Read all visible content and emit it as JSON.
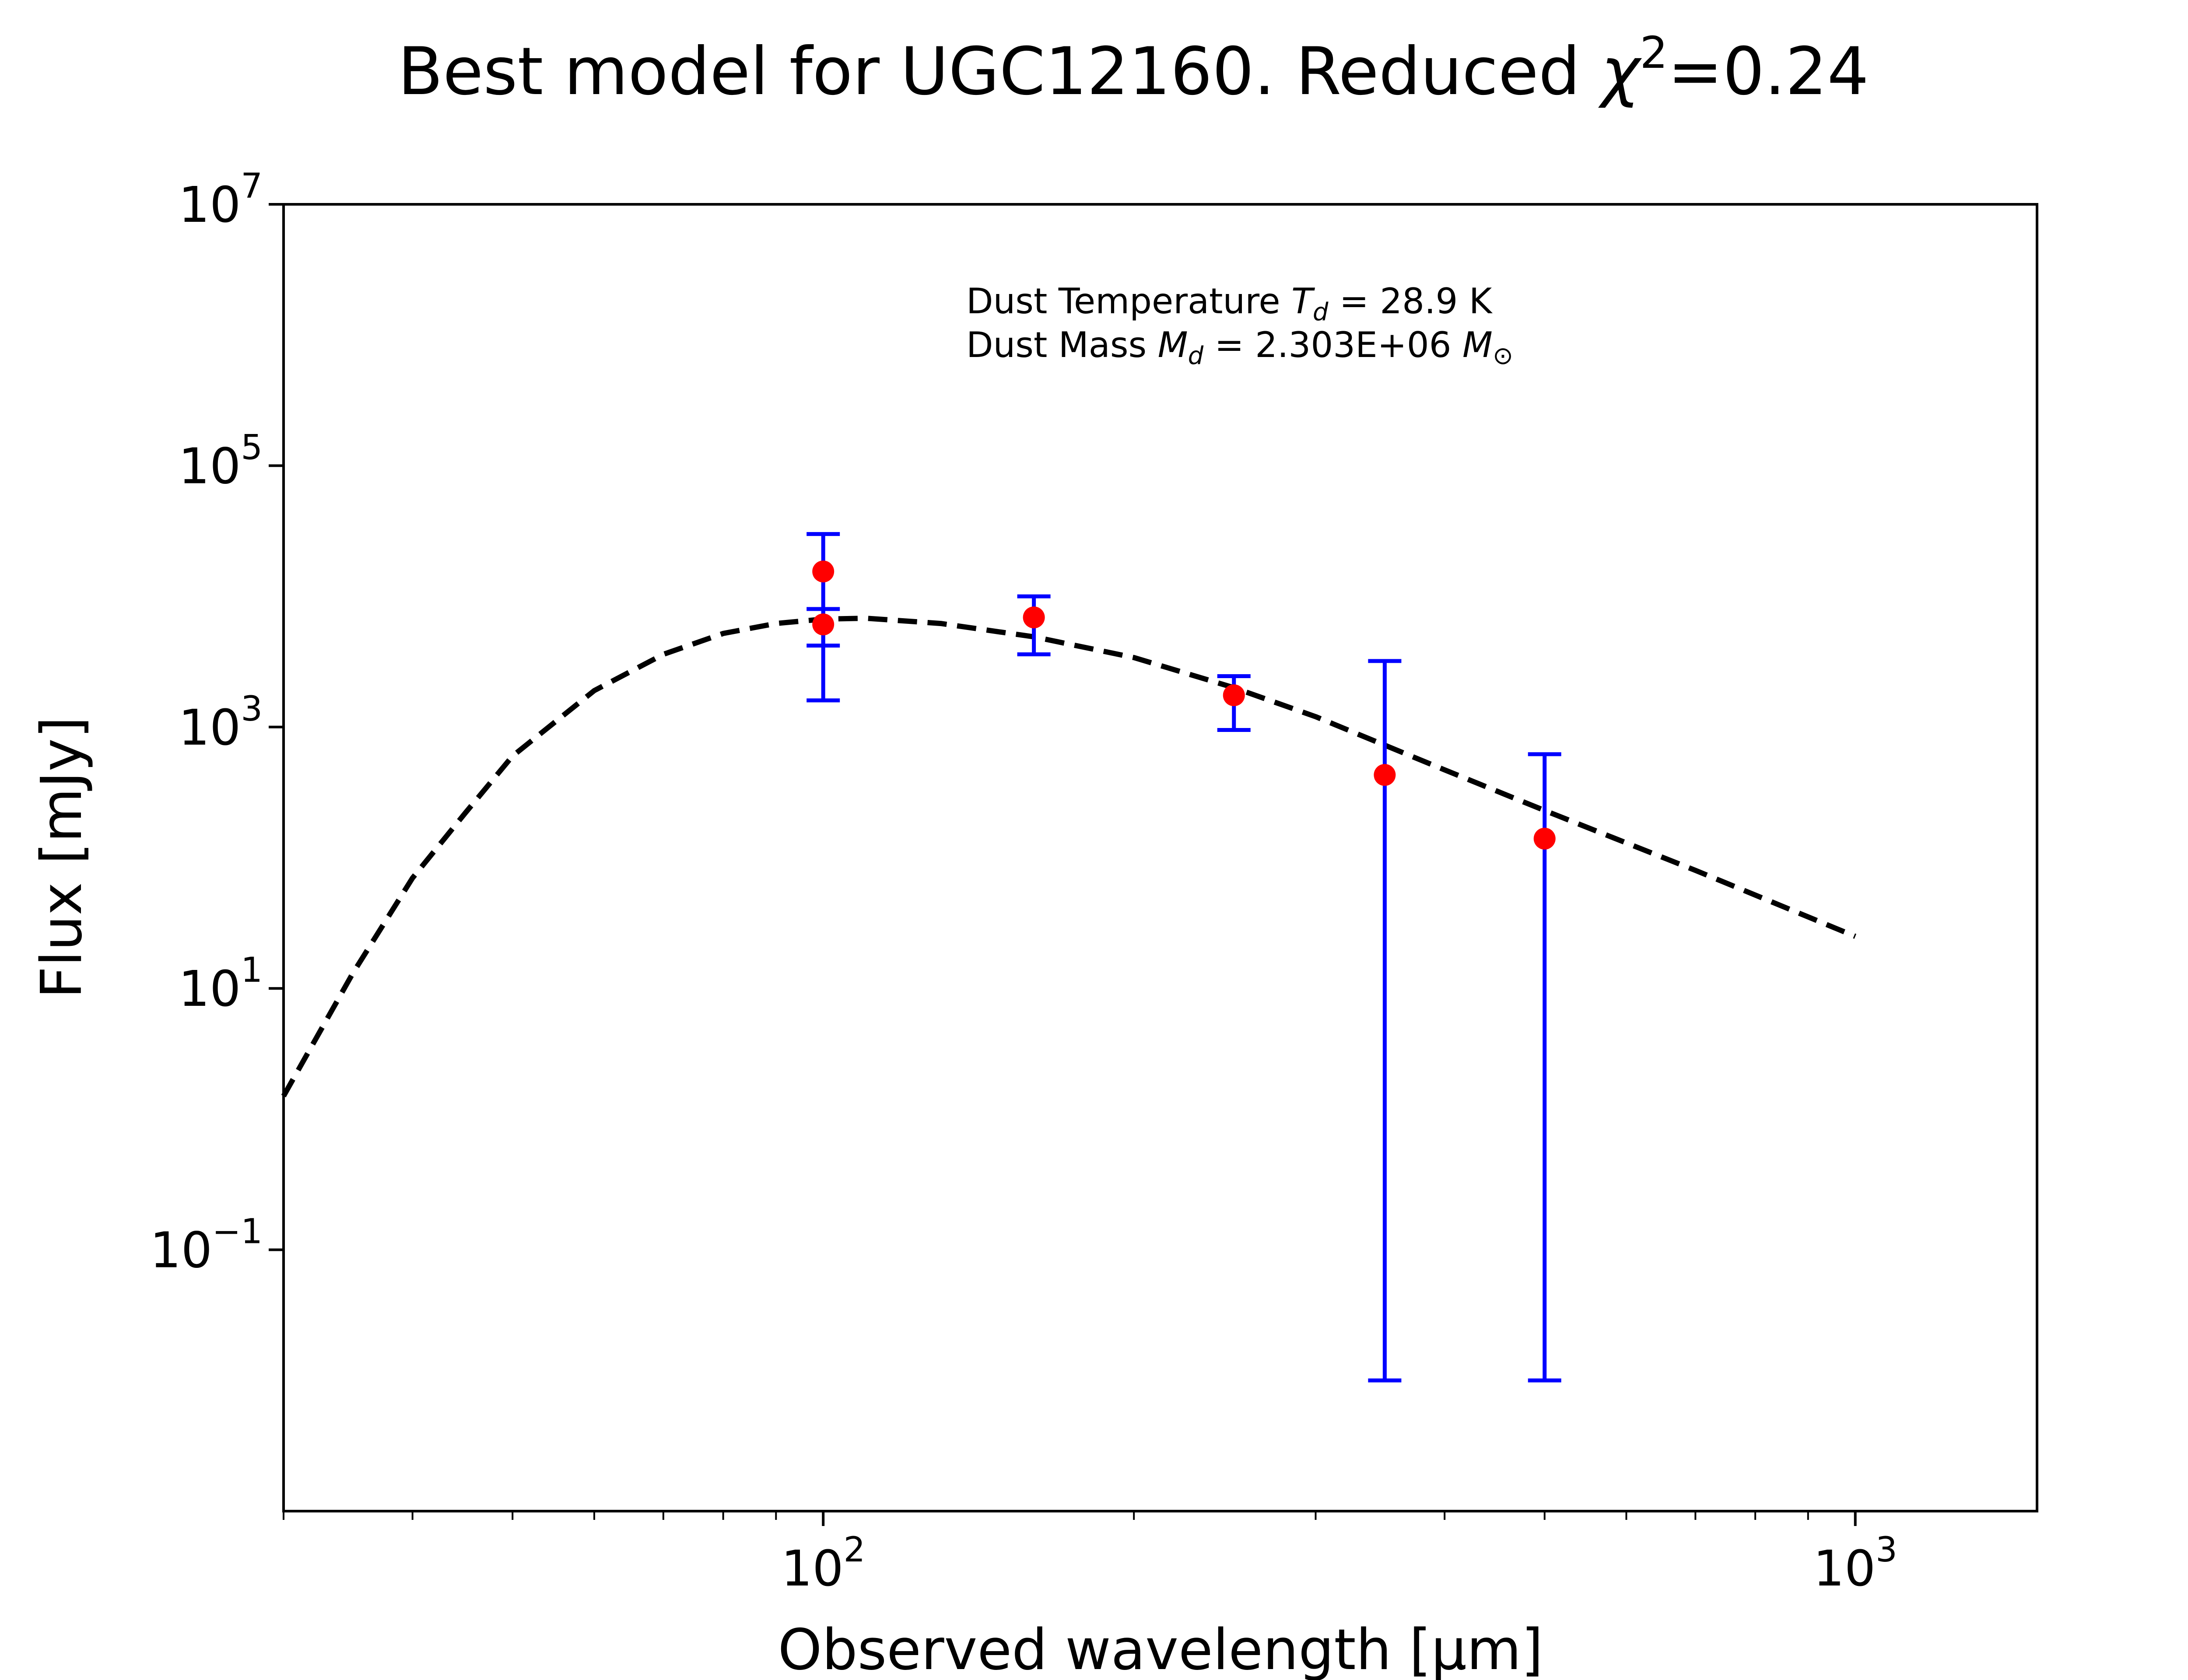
{
  "title": {
    "prefix": "Best model for UGC12160. Reduced ",
    "chi_symbol": "χ",
    "chi_exp": "2",
    "suffix": "=0.24"
  },
  "annotation": {
    "line1_prefix": "Dust Temperature ",
    "line1_sym": "T",
    "line1_sub": "d",
    "line1_suffix": " = 28.9 K",
    "line2_prefix": "Dust Mass ",
    "line2_sym": "M",
    "line2_sub": "d",
    "line2_mid": " = 2.303E+06 ",
    "line2_sym2": "M",
    "line2_sub2": "⊙"
  },
  "chart_data": {
    "type": "scatter",
    "xlabel": "Observed wavelength [μm]",
    "ylabel": "Flux [mJy]",
    "xscale": "log",
    "yscale": "log",
    "xlim": [
      30,
      1500
    ],
    "ylim": [
      0.001,
      10000000
    ],
    "x_ticks": [
      {
        "value": 100,
        "base": "10",
        "exp": "2"
      },
      {
        "value": 1000,
        "base": "10",
        "exp": "3"
      }
    ],
    "y_ticks": [
      {
        "value": 0.1,
        "base": "10",
        "exp": "−1"
      },
      {
        "value": 10,
        "base": "10",
        "exp": "1"
      },
      {
        "value": 1000,
        "base": "10",
        "exp": "3"
      },
      {
        "value": 100000,
        "base": "10",
        "exp": "5"
      },
      {
        "value": 10000000,
        "base": "10",
        "exp": "7"
      }
    ],
    "observed": {
      "color": "#ff0000",
      "errorbar_color": "#0000ff",
      "points": [
        {
          "x": 100,
          "y": 15500,
          "yerr_low": 13900,
          "yerr_high": 14500
        },
        {
          "x": 100,
          "y": 6100,
          "yerr_low": 1900,
          "yerr_high": 1900
        },
        {
          "x": 160,
          "y": 6900,
          "yerr_low": 3300,
          "yerr_high": 3100
        },
        {
          "x": 250,
          "y": 1750,
          "yerr_low": 800,
          "yerr_high": 700
        },
        {
          "x": 350,
          "y": 430,
          "yerr_low": 429.99,
          "yerr_high": 2770
        },
        {
          "x": 500,
          "y": 140,
          "yerr_low": 139.99,
          "yerr_high": 480
        }
      ]
    },
    "model": {
      "style": "dashed",
      "color": "#000000",
      "curve": [
        {
          "x": 30,
          "y": 1.5
        },
        {
          "x": 35,
          "y": 13
        },
        {
          "x": 40,
          "y": 70
        },
        {
          "x": 45,
          "y": 220
        },
        {
          "x": 50,
          "y": 600
        },
        {
          "x": 60,
          "y": 1900
        },
        {
          "x": 70,
          "y": 3600
        },
        {
          "x": 80,
          "y": 5200
        },
        {
          "x": 90,
          "y": 6200
        },
        {
          "x": 100,
          "y": 6700
        },
        {
          "x": 110,
          "y": 6800
        },
        {
          "x": 130,
          "y": 6200
        },
        {
          "x": 160,
          "y": 4900
        },
        {
          "x": 200,
          "y": 3400
        },
        {
          "x": 250,
          "y": 2000
        },
        {
          "x": 300,
          "y": 1200
        },
        {
          "x": 400,
          "y": 470
        },
        {
          "x": 500,
          "y": 230
        },
        {
          "x": 700,
          "y": 80
        },
        {
          "x": 1000,
          "y": 25
        }
      ]
    }
  }
}
